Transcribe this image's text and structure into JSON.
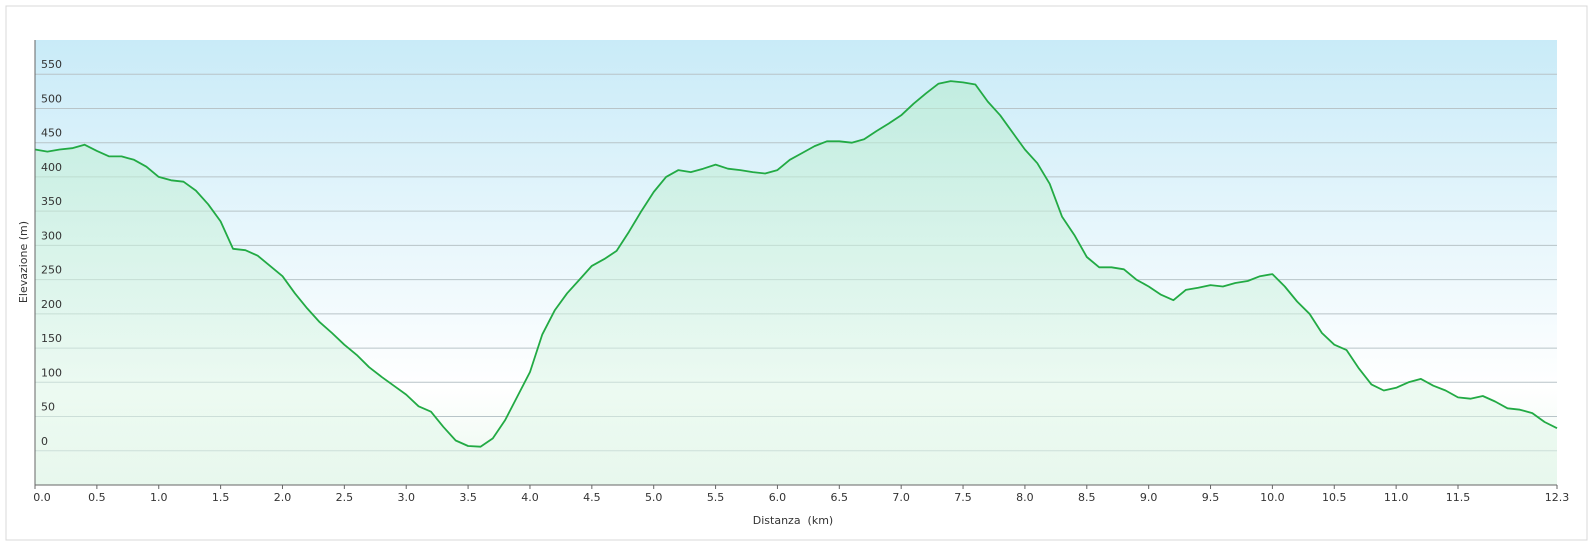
{
  "chart_data": {
    "type": "area",
    "x_label": "Distanza  (km)",
    "y_label": "Elevazione (m)",
    "x": [
      0,
      0.1,
      0.2,
      0.3,
      0.4,
      0.5,
      0.6,
      0.7,
      0.8,
      0.9,
      1,
      1.1,
      1.2,
      1.3,
      1.4,
      1.5,
      1.6,
      1.7,
      1.8,
      1.9,
      2,
      2.1,
      2.2,
      2.3,
      2.4,
      2.5,
      2.6,
      2.7,
      2.8,
      2.9,
      3,
      3.1,
      3.2,
      3.3,
      3.4,
      3.5,
      3.6,
      3.7,
      3.8,
      3.9,
      4,
      4.1,
      4.2,
      4.3,
      4.4,
      4.5,
      4.6,
      4.7,
      4.8,
      4.9,
      5,
      5.1,
      5.2,
      5.3,
      5.4,
      5.5,
      5.6,
      5.7,
      5.8,
      5.9,
      6,
      6.1,
      6.2,
      6.3,
      6.4,
      6.5,
      6.6,
      6.7,
      6.8,
      6.9,
      7,
      7.1,
      7.2,
      7.3,
      7.4,
      7.5,
      7.6,
      7.7,
      7.8,
      7.9,
      8,
      8.1,
      8.2,
      8.3,
      8.4,
      8.5,
      8.6,
      8.7,
      8.8,
      8.9,
      9,
      9.1,
      9.2,
      9.3,
      9.4,
      9.5,
      9.6,
      9.7,
      9.8,
      9.9,
      10,
      10.1,
      10.2,
      10.3,
      10.4,
      10.5,
      10.6,
      10.7,
      10.8,
      10.9,
      11,
      11.1,
      11.2,
      11.3,
      11.4,
      11.5,
      11.6,
      11.7,
      11.8,
      11.9,
      12,
      12.1,
      12.2,
      12.3
    ],
    "series": [
      {
        "name": "Elevazione",
        "color": "#22aa44",
        "values": [
          440,
          437,
          440,
          442,
          447,
          438,
          430,
          430,
          425,
          415,
          400,
          395,
          393,
          380,
          360,
          335,
          295,
          293,
          285,
          270,
          255,
          230,
          208,
          188,
          172,
          155,
          140,
          122,
          108,
          95,
          82,
          65,
          57,
          35,
          15,
          7,
          6,
          18,
          45,
          80,
          115,
          170,
          205,
          230,
          250,
          270,
          280,
          292,
          320,
          350,
          378,
          400,
          410,
          407,
          412,
          418,
          412,
          410,
          407,
          405,
          410,
          425,
          435,
          445,
          452,
          452,
          450,
          455,
          467,
          478,
          490,
          507,
          522,
          536,
          540,
          538,
          535,
          510,
          490,
          465,
          440,
          420,
          390,
          342,
          315,
          283,
          268,
          268,
          265,
          250,
          240,
          228,
          220,
          235,
          238,
          242,
          240,
          245,
          248,
          255,
          258,
          240,
          218,
          200,
          172,
          155,
          147,
          120,
          97,
          88,
          92,
          100,
          105,
          95,
          88,
          78,
          76,
          80,
          72,
          62,
          60,
          55,
          42,
          33
        ]
      }
    ],
    "xlim": [
      0,
      12.3
    ],
    "ylim": [
      -50,
      600
    ],
    "xticks": [
      {
        "value": 0,
        "label": "0.0"
      },
      0.5,
      {
        "value": 1,
        "label": "1.0"
      },
      1.5,
      {
        "value": 2,
        "label": "2.0"
      },
      2.5,
      {
        "value": 3,
        "label": "3.0"
      },
      3.5,
      {
        "value": 4,
        "label": "4.0"
      },
      4.5,
      {
        "value": 5,
        "label": "5.0"
      },
      5.5,
      {
        "value": 6,
        "label": "6.0"
      },
      6.5,
      {
        "value": 7,
        "label": "7.0"
      },
      7.5,
      {
        "value": 8,
        "label": "8.0"
      },
      8.5,
      {
        "value": 9,
        "label": "9.0"
      },
      9.5,
      {
        "value": 10,
        "label": "10.0"
      },
      10.5,
      {
        "value": 11,
        "label": "11.0"
      },
      11.5,
      12.3
    ],
    "yticks": [
      0,
      50,
      100,
      150,
      200,
      250,
      300,
      350,
      400,
      450,
      500,
      550
    ],
    "grid": true
  }
}
